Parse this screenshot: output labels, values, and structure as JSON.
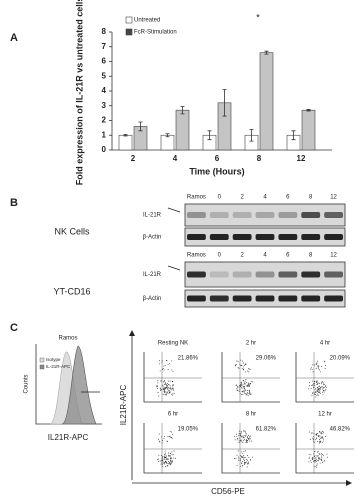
{
  "chart_data": {
    "type": "bar",
    "panel_label": "A",
    "y_label": "Fold expression of IL-21R vs untreated cells",
    "x_label": "Time (Hours)",
    "categories": [
      "2",
      "4",
      "6",
      "8",
      "12"
    ],
    "series": [
      {
        "name": "Untreated",
        "color": "#ffffff",
        "values": [
          1,
          1,
          1,
          1,
          1
        ],
        "errors": [
          0.05,
          0.1,
          0.3,
          0.4,
          0.3
        ]
      },
      {
        "name": "FcR-Stimulation",
        "color": "#c4c4c4",
        "values": [
          1.6,
          2.7,
          3.2,
          6.6,
          2.7
        ],
        "errors": [
          0.3,
          0.25,
          0.9,
          0.1,
          0.05
        ]
      }
    ],
    "annotation": "*",
    "ylim": [
      0,
      8
    ],
    "yticks": [
      0,
      1,
      2,
      3,
      4,
      5,
      6,
      7,
      8
    ],
    "legend": "top-left"
  },
  "panel_b": {
    "label": "B",
    "lanes": [
      "Ramos",
      "0",
      "2",
      "4",
      "6",
      "8",
      "12"
    ],
    "blots": [
      {
        "cell_line": "NK Cells",
        "rows": [
          "IL-21R",
          "β-Actin"
        ]
      },
      {
        "cell_line": "YT-CD16",
        "rows": [
          "IL-21R",
          "β-Actin"
        ]
      }
    ]
  },
  "panel_c": {
    "label": "C",
    "histogram": {
      "title": "Ramos",
      "legend": [
        "Isotype",
        "IL-21R-APC"
      ],
      "x_label": "IL21R-APC",
      "y_label": "Counts"
    },
    "x_label": "CD56-PE",
    "y_label": "IL21R-APC",
    "plots": [
      {
        "title": "Resting NK",
        "percent": "21.86%"
      },
      {
        "title": "2 hr",
        "percent": "29.06%"
      },
      {
        "title": "4 hr",
        "percent": "20.09%"
      },
      {
        "title": "6 hr",
        "percent": "19.05%"
      },
      {
        "title": "8 hr",
        "percent": "61.82%"
      },
      {
        "title": "12 hr",
        "percent": "46.82%"
      }
    ]
  }
}
